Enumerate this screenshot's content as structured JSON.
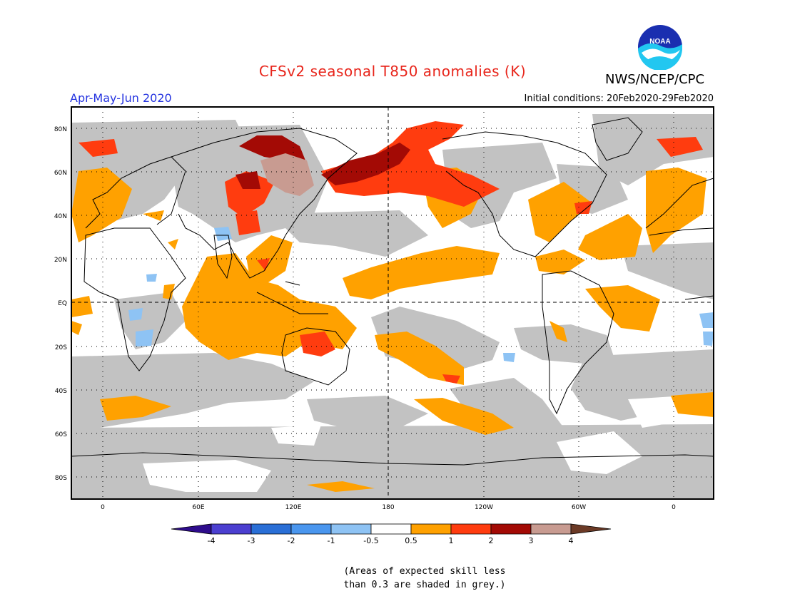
{
  "header": {
    "title": "CFSv2 seasonal T850 anomalies (K)",
    "period": "Apr-May-Jun 2020",
    "initial_conditions": "Initial conditions: 20Feb2020-29Feb2020",
    "organization": "NWS/NCEP/CPC",
    "logo_text": "NOAA"
  },
  "axes": {
    "lat_labels": [
      "80N",
      "60N",
      "40N",
      "20N",
      "EQ",
      "20S",
      "40S",
      "60S",
      "80S"
    ],
    "lon_labels": [
      "0",
      "60E",
      "120E",
      "180",
      "120W",
      "60W",
      "0"
    ]
  },
  "colorbar": {
    "labels": [
      "-4",
      "-3",
      "-2",
      "-1",
      "-0.5",
      "0.5",
      "1",
      "2",
      "3",
      "4"
    ],
    "colors": [
      "#2e0c8c",
      "#4b3fd0",
      "#2a6fd6",
      "#4a96ee",
      "#8ec3f4",
      "#ffffff",
      "#ffa100",
      "#ff3c0f",
      "#a30a05",
      "#c89b91",
      "#6b3a26"
    ]
  },
  "note": {
    "line1": "(Areas of expected skill less",
    "line2": "than 0.3 are shaded in grey.)"
  },
  "colors": {
    "skill_grey": "#c2c2c2",
    "anom_05_1": "#ffa100",
    "anom_1_2": "#ff3c0f",
    "anom_2_3": "#a30a05",
    "anom_3_4": "#c89b91",
    "neg_1": "#4a96ee"
  }
}
